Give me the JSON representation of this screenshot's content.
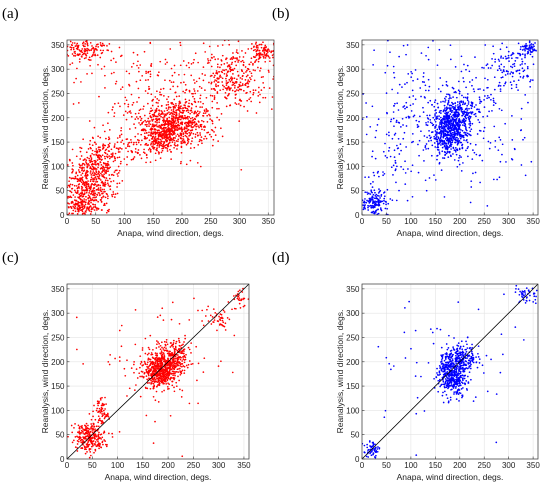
{
  "chart_data": [
    {
      "type": "scatter",
      "panel_label": "(a)",
      "xlabel": "Anapa, wind direction, degs.",
      "ylabel": "Reanalysis, wind direction, degs.",
      "xlim": [
        0,
        360
      ],
      "ylim": [
        0,
        360
      ],
      "xticks": [
        0,
        50,
        100,
        150,
        200,
        250,
        300,
        350
      ],
      "yticks": [
        0,
        50,
        100,
        150,
        200,
        250,
        300,
        350
      ],
      "grid": true,
      "diagonal_line": false,
      "marker_color": "#ff0000",
      "point_clusters": [
        {
          "center": [
            40,
            60
          ],
          "spread": [
            22,
            35
          ],
          "count": 520
        },
        {
          "center": [
            60,
            110
          ],
          "spread": [
            14,
            25
          ],
          "count": 130
        },
        {
          "center": [
            190,
            190
          ],
          "spread": [
            30,
            25
          ],
          "count": 650
        },
        {
          "center": [
            165,
            160
          ],
          "spread": [
            18,
            16
          ],
          "count": 200
        },
        {
          "center": [
            290,
            285
          ],
          "spread": [
            28,
            28
          ],
          "count": 260
        },
        {
          "center": [
            340,
            335
          ],
          "spread": [
            10,
            10
          ],
          "count": 90
        },
        {
          "center": [
            30,
            340
          ],
          "spread": [
            22,
            12
          ],
          "count": 150
        },
        {
          "center": [
            110,
            135
          ],
          "spread": [
            35,
            12
          ],
          "count": 90
        },
        {
          "center": [
            180,
            250
          ],
          "spread": [
            80,
            60
          ],
          "count": 320
        },
        {
          "center": [
            20,
            20
          ],
          "spread": [
            12,
            12
          ],
          "count": 100
        }
      ]
    },
    {
      "type": "scatter",
      "panel_label": "(b)",
      "xlabel": "Anapa, wind direction, degs.",
      "ylabel": "Reanalysis, wind direction, degs.",
      "xlim": [
        0,
        360
      ],
      "ylim": [
        0,
        360
      ],
      "xticks": [
        0,
        50,
        100,
        150,
        200,
        250,
        300,
        350
      ],
      "yticks": [
        0,
        50,
        100,
        150,
        200,
        250,
        300,
        350
      ],
      "grid": true,
      "diagonal_line": false,
      "marker_color": "#0000ff",
      "point_clusters": [
        {
          "center": [
            180,
            175
          ],
          "spread": [
            18,
            25
          ],
          "count": 550
        },
        {
          "center": [
            200,
            210
          ],
          "spread": [
            22,
            20
          ],
          "count": 200
        },
        {
          "center": [
            25,
            25
          ],
          "spread": [
            14,
            14
          ],
          "count": 160
        },
        {
          "center": [
            300,
            300
          ],
          "spread": [
            25,
            25
          ],
          "count": 110
        },
        {
          "center": [
            340,
            340
          ],
          "spread": [
            8,
            8
          ],
          "count": 60
        },
        {
          "center": [
            175,
            200
          ],
          "spread": [
            85,
            80
          ],
          "count": 330
        },
        {
          "center": [
            60,
            150
          ],
          "spread": [
            40,
            80
          ],
          "count": 90
        }
      ]
    },
    {
      "type": "scatter",
      "panel_label": "(c)",
      "xlabel": "Anapa, wind direction, degs.",
      "ylabel": "Reanalysis, wind direction, degs.",
      "xlim": [
        0,
        360
      ],
      "ylim": [
        0,
        360
      ],
      "xticks": [
        0,
        50,
        100,
        150,
        200,
        250,
        300,
        350
      ],
      "yticks": [
        0,
        50,
        100,
        150,
        200,
        250,
        300,
        350
      ],
      "grid": true,
      "diagonal_line": true,
      "marker_color": "#ff0000",
      "point_clusters": [
        {
          "center": [
            45,
            45
          ],
          "spread": [
            16,
            16
          ],
          "count": 260
        },
        {
          "center": [
            70,
            95
          ],
          "spread": [
            6,
            18
          ],
          "count": 70
        },
        {
          "center": [
            185,
            180
          ],
          "spread": [
            18,
            18
          ],
          "count": 550
        },
        {
          "center": [
            210,
            215
          ],
          "spread": [
            18,
            16
          ],
          "count": 220
        },
        {
          "center": [
            295,
            290
          ],
          "spread": [
            12,
            12
          ],
          "count": 45
        },
        {
          "center": [
            340,
            330
          ],
          "spread": [
            8,
            10
          ],
          "count": 30
        },
        {
          "center": [
            180,
            200
          ],
          "spread": [
            75,
            70
          ],
          "count": 90
        }
      ]
    },
    {
      "type": "scatter",
      "panel_label": "(d)",
      "xlabel": "Anapa, wind direction, degs.",
      "ylabel": "Reanalysis, wind direction, degs.",
      "xlim": [
        0,
        360
      ],
      "ylim": [
        0,
        360
      ],
      "xticks": [
        0,
        50,
        100,
        150,
        200,
        250,
        300,
        350
      ],
      "yticks": [
        0,
        50,
        100,
        150,
        200,
        250,
        300,
        350
      ],
      "grid": true,
      "diagonal_line": true,
      "marker_color": "#0000ff",
      "point_clusters": [
        {
          "center": [
            185,
            175
          ],
          "spread": [
            14,
            22
          ],
          "count": 450
        },
        {
          "center": [
            205,
            210
          ],
          "spread": [
            18,
            14
          ],
          "count": 170
        },
        {
          "center": [
            20,
            20
          ],
          "spread": [
            8,
            10
          ],
          "count": 60
        },
        {
          "center": [
            335,
            340
          ],
          "spread": [
            14,
            10
          ],
          "count": 55
        },
        {
          "center": [
            170,
            200
          ],
          "spread": [
            80,
            70
          ],
          "count": 60
        }
      ]
    }
  ]
}
